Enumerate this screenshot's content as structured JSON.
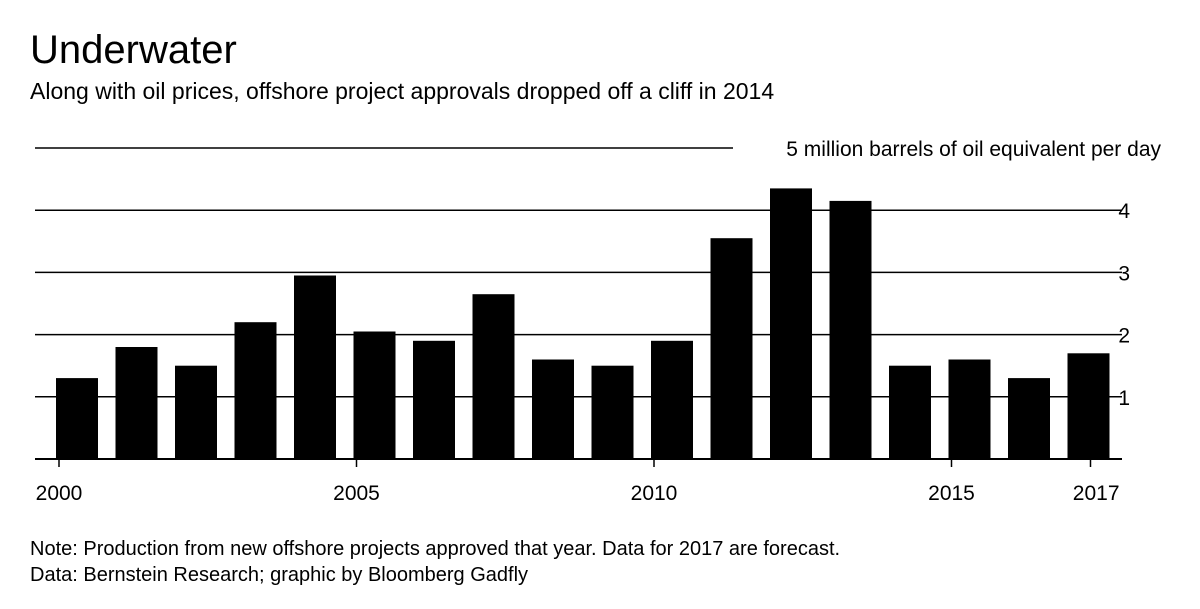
{
  "title": "Underwater",
  "subtitle": "Along with oil prices, offshore project approvals dropped off a cliff in 2014",
  "note": "Note: Production from new offshore projects approved that year. Data for 2017 are forecast.",
  "source": "Data: Bernstein Research; graphic by Bloomberg Gadfly",
  "chart_data": {
    "type": "bar",
    "title": "Underwater",
    "subtitle": "Along with oil prices, offshore project approvals dropped off a cliff in 2014",
    "categories": [
      2000,
      2001,
      2002,
      2003,
      2004,
      2005,
      2006,
      2007,
      2008,
      2009,
      2010,
      2011,
      2012,
      2013,
      2014,
      2015,
      2016,
      2017
    ],
    "values": [
      1.3,
      1.8,
      1.5,
      2.2,
      2.95,
      2.05,
      1.9,
      2.65,
      1.6,
      1.5,
      1.9,
      3.55,
      4.35,
      4.15,
      1.5,
      1.6,
      1.3,
      1.7
    ],
    "ylim": [
      0,
      5
    ],
    "yticks": [
      1,
      2,
      3,
      4,
      5
    ],
    "ytick_labels": [
      "1",
      "2",
      "3",
      "4",
      "5 million barrels of oil equivalent per day"
    ],
    "xtick_labels": [
      "2000",
      "2005",
      "2010",
      "2015",
      "2017"
    ],
    "xlabel": "",
    "ylabel": "",
    "bar_color": "#000000",
    "grid": true
  }
}
